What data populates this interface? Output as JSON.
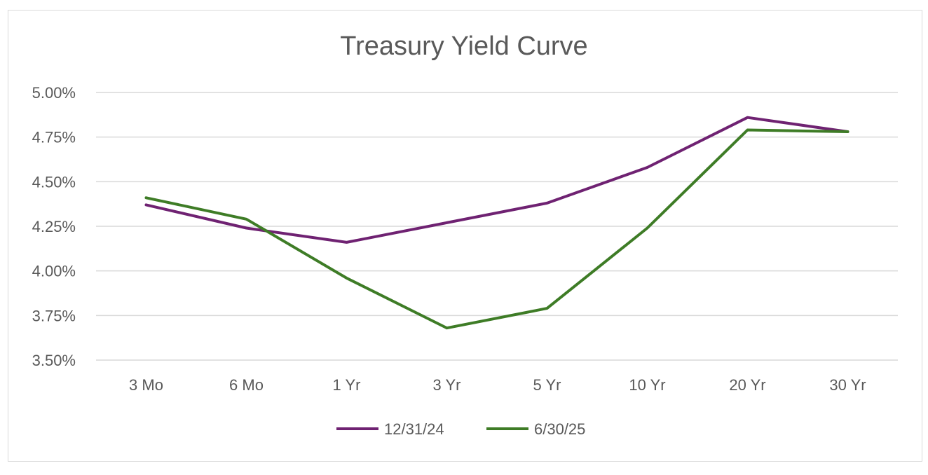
{
  "chart_data": {
    "type": "line",
    "title": "Treasury Yield Curve",
    "categories": [
      "3 Mo",
      "6 Mo",
      "1 Yr",
      "3 Yr",
      "5 Yr",
      "10 Yr",
      "20 Yr",
      "30 Yr"
    ],
    "yticks": [
      "3.50%",
      "3.75%",
      "4.00%",
      "4.25%",
      "4.50%",
      "4.75%",
      "5.00%"
    ],
    "ylim": [
      3.5,
      5.0
    ],
    "grid": true,
    "legend_position": "bottom",
    "series": [
      {
        "name": "12/31/24",
        "color": "#6f2272",
        "values": [
          4.37,
          4.24,
          4.16,
          4.27,
          4.38,
          4.58,
          4.86,
          4.78
        ]
      },
      {
        "name": "6/30/25",
        "color": "#3e7c26",
        "values": [
          4.41,
          4.29,
          3.96,
          3.68,
          3.79,
          4.24,
          4.79,
          4.78
        ]
      }
    ]
  }
}
